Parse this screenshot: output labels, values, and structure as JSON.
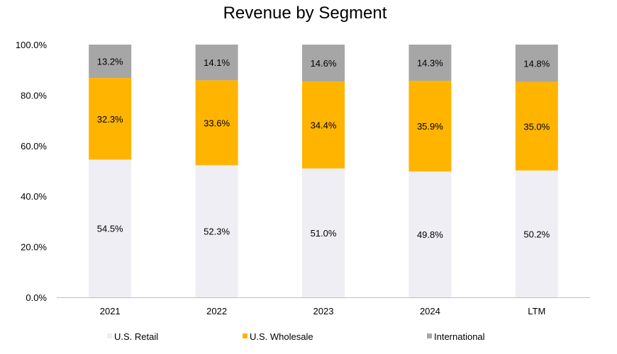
{
  "chart_data": {
    "type": "bar",
    "stacked": true,
    "title": "Revenue by Segment",
    "xlabel": "",
    "ylabel": "",
    "ylim": [
      0,
      100
    ],
    "yticks": [
      "0.0%",
      "20.0%",
      "40.0%",
      "60.0%",
      "80.0%",
      "100.0%"
    ],
    "categories": [
      "2021",
      "2022",
      "2023",
      "2024",
      "LTM"
    ],
    "series": [
      {
        "name": "U.S. Retail",
        "color": "#efeef4",
        "values": [
          54.5,
          52.3,
          51.0,
          49.8,
          50.2
        ],
        "labels": [
          "54.5%",
          "52.3%",
          "51.0%",
          "49.8%",
          "50.2%"
        ]
      },
      {
        "name": "U.S. Wholesale",
        "color": "#ffb400",
        "values": [
          32.3,
          33.6,
          34.4,
          35.9,
          35.0
        ],
        "labels": [
          "32.3%",
          "33.6%",
          "34.4%",
          "35.9%",
          "35.0%"
        ]
      },
      {
        "name": "International",
        "color": "#a6a6a6",
        "values": [
          13.2,
          14.1,
          14.6,
          14.3,
          14.8
        ],
        "labels": [
          "13.2%",
          "14.1%",
          "14.6%",
          "14.3%",
          "14.8%"
        ]
      }
    ],
    "legend": "bottom",
    "grid": false
  }
}
